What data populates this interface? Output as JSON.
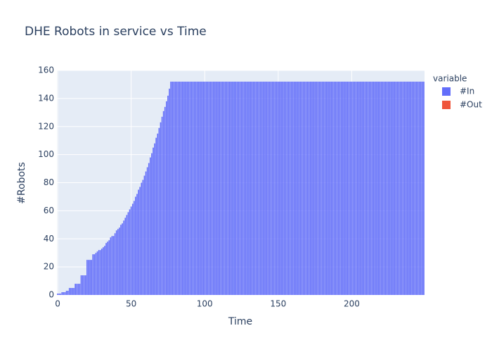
{
  "chart_data": {
    "type": "bar",
    "title": "DHE Robots in service vs Time",
    "x_label": "Time",
    "y_label": "#Robots",
    "legend_title": "variable",
    "grid": true,
    "legend_position": "right",
    "xlim": [
      -0.5,
      249.5
    ],
    "xticks": [
      0,
      50,
      100,
      150,
      200
    ],
    "ylim": [
      0,
      160
    ],
    "yticks": [
      0,
      20,
      40,
      60,
      80,
      100,
      120,
      140,
      160
    ],
    "x": [
      0,
      1,
      2,
      3,
      4,
      5,
      6,
      7,
      8,
      9,
      10,
      11,
      12,
      13,
      14,
      15,
      16,
      17,
      18,
      19,
      20,
      21,
      22,
      23,
      24,
      25,
      26,
      27,
      28,
      29,
      30,
      31,
      32,
      33,
      34,
      35,
      36,
      37,
      38,
      39,
      40,
      41,
      42,
      43,
      44,
      45,
      46,
      47,
      48,
      49,
      50,
      51,
      52,
      53,
      54,
      55,
      56,
      57,
      58,
      59,
      60,
      61,
      62,
      63,
      64,
      65,
      66,
      67,
      68,
      69,
      70,
      71,
      72,
      73,
      74,
      75,
      76,
      77,
      78,
      79,
      80,
      81,
      82,
      83,
      84,
      85,
      86,
      87,
      88,
      89,
      90,
      91,
      92,
      93,
      94,
      95,
      96,
      97,
      98,
      99,
      100,
      101,
      102,
      103,
      104,
      105,
      106,
      107,
      108,
      109,
      110,
      111,
      112,
      113,
      114,
      115,
      116,
      117,
      118,
      119,
      120,
      121,
      122,
      123,
      124,
      125,
      126,
      127,
      128,
      129,
      130,
      131,
      132,
      133,
      134,
      135,
      136,
      137,
      138,
      139,
      140,
      141,
      142,
      143,
      144,
      145,
      146,
      147,
      148,
      149,
      150,
      151,
      152,
      153,
      154,
      155,
      156,
      157,
      158,
      159,
      160,
      161,
      162,
      163,
      164,
      165,
      166,
      167,
      168,
      169,
      170,
      171,
      172,
      173,
      174,
      175,
      176,
      177,
      178,
      179,
      180,
      181,
      182,
      183,
      184,
      185,
      186,
      187,
      188,
      189,
      190,
      191,
      192,
      193,
      194,
      195,
      196,
      197,
      198,
      199,
      200,
      201,
      202,
      203,
      204,
      205,
      206,
      207,
      208,
      209,
      210,
      211,
      212,
      213,
      214,
      215,
      216,
      217,
      218,
      219,
      220,
      221,
      222,
      223,
      224,
      225,
      226,
      227,
      228,
      229,
      230,
      231,
      232,
      233,
      234,
      235,
      236,
      237,
      238,
      239,
      240,
      241,
      242,
      243,
      244,
      245,
      246,
      247,
      248,
      249
    ],
    "series": [
      {
        "name": "#In",
        "color": "#636efa",
        "values": [
          1,
          1,
          1,
          2,
          2,
          2,
          3,
          3,
          5,
          5,
          5,
          5,
          8,
          8,
          8,
          8,
          14,
          14,
          14,
          14,
          25,
          25,
          25,
          25,
          29,
          29,
          30,
          31,
          32,
          32,
          33,
          34,
          35,
          37,
          38,
          39,
          41,
          42,
          42,
          44,
          46,
          47,
          48,
          50,
          51,
          53,
          55,
          57,
          59,
          61,
          63,
          65,
          67,
          70,
          72,
          75,
          77,
          80,
          82,
          85,
          88,
          91,
          94,
          98,
          101,
          105,
          108,
          112,
          115,
          119,
          123,
          127,
          131,
          134,
          138,
          142,
          147,
          152,
          152,
          152,
          152,
          152,
          152,
          152,
          152,
          152,
          152,
          152,
          152,
          152,
          152,
          152,
          152,
          152,
          152,
          152,
          152,
          152,
          152,
          152,
          152,
          152,
          152,
          152,
          152,
          152,
          152,
          152,
          152,
          152,
          152,
          152,
          152,
          152,
          152,
          152,
          152,
          152,
          152,
          152,
          152,
          152,
          152,
          152,
          152,
          152,
          152,
          152,
          152,
          152,
          152,
          152,
          152,
          152,
          152,
          152,
          152,
          152,
          152,
          152,
          152,
          152,
          152,
          152,
          152,
          152,
          152,
          152,
          152,
          152,
          152,
          152,
          152,
          152,
          152,
          152,
          152,
          152,
          152,
          152,
          152,
          152,
          152,
          152,
          152,
          152,
          152,
          152,
          152,
          152,
          152,
          152,
          152,
          152,
          152,
          152,
          152,
          152,
          152,
          152,
          152,
          152,
          152,
          152,
          152,
          152,
          152,
          152,
          152,
          152,
          152,
          152,
          152,
          152,
          152,
          152,
          152,
          152,
          152,
          152,
          152,
          152,
          152,
          152,
          152,
          152,
          152,
          152,
          152,
          152,
          152,
          152,
          152,
          152,
          152,
          152,
          152,
          152,
          152,
          152,
          152,
          152,
          152,
          152,
          152,
          152,
          152,
          152,
          152,
          152,
          152,
          152,
          152,
          152,
          152,
          152,
          152,
          152,
          152,
          152,
          152,
          152,
          152,
          152,
          152,
          152,
          152,
          152,
          152,
          152
        ]
      },
      {
        "name": "#Out",
        "color": "#EF553B",
        "values": [
          0,
          0,
          0,
          0,
          0,
          0,
          0,
          0,
          0,
          0,
          0,
          0,
          0,
          0,
          0,
          0,
          0,
          0,
          0,
          0,
          0,
          0,
          0,
          0,
          0,
          0,
          0,
          0,
          0,
          0,
          0,
          0,
          0,
          0,
          0,
          0,
          0,
          0,
          0,
          0,
          0,
          0,
          0,
          0,
          0,
          0,
          0,
          0,
          0,
          0,
          0,
          0,
          0,
          0,
          0,
          0,
          0,
          0,
          0,
          0,
          0,
          0,
          0,
          0,
          0,
          0,
          0,
          0,
          0,
          0,
          0,
          0,
          0,
          0,
          0,
          0,
          0,
          0,
          0,
          0,
          0,
          0,
          0,
          0,
          0,
          0,
          0,
          0,
          0,
          0,
          0,
          0,
          0,
          0,
          0,
          0,
          0,
          0,
          0,
          0,
          0,
          0,
          0,
          0,
          0,
          0,
          0,
          0,
          0,
          0,
          0,
          0,
          0,
          0,
          0,
          0,
          0,
          0,
          0,
          0,
          0,
          0,
          0,
          0,
          0,
          0,
          0,
          0,
          0,
          0,
          0,
          0,
          0,
          0,
          0,
          0,
          0,
          0,
          0,
          0,
          0,
          0,
          0,
          0,
          0,
          0,
          0,
          0,
          0,
          0,
          0,
          0,
          0,
          0,
          0,
          0,
          0,
          0,
          0,
          0,
          0,
          0,
          0,
          0,
          0,
          0,
          0,
          0,
          0,
          0,
          0,
          0,
          0,
          0,
          0,
          0,
          0,
          0,
          0,
          0,
          0,
          0,
          0,
          0,
          0,
          0,
          0,
          0,
          0,
          0,
          0,
          0,
          0,
          0,
          0,
          0,
          0,
          0,
          0,
          0,
          0,
          0,
          0,
          0,
          0,
          0,
          0,
          0,
          0,
          0,
          0,
          0,
          0,
          0,
          0,
          0,
          0,
          0,
          0,
          0,
          0,
          0,
          0,
          0,
          0,
          0,
          0,
          0,
          0,
          0,
          0,
          0,
          0,
          0,
          0,
          0,
          0,
          0,
          0,
          0,
          0,
          0,
          0,
          0,
          0,
          0,
          0,
          0,
          0,
          0
        ]
      }
    ]
  }
}
